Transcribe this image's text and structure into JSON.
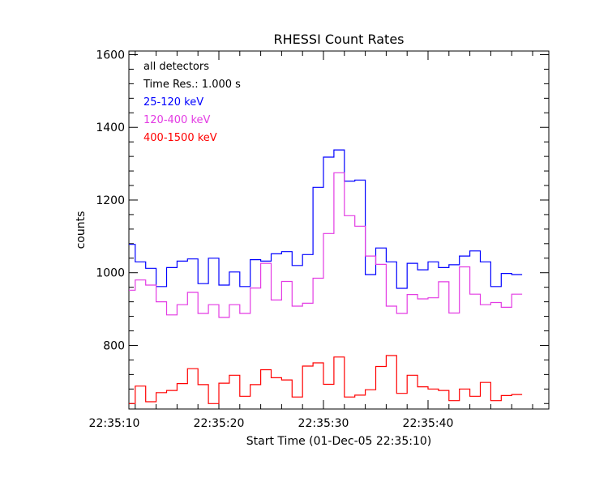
{
  "chart_data": {
    "type": "line",
    "step": true,
    "title": "RHESSI Count Rates",
    "xlabel": "Start Time (01-Dec-05 22:35:10)",
    "ylabel": "counts",
    "xlim": [
      0,
      40
    ],
    "ylim": [
      625,
      1610
    ],
    "x_ticks": [
      {
        "value": 0,
        "label": "22:35:10"
      },
      {
        "value": 10,
        "label": "22:35:20"
      },
      {
        "value": 20,
        "label": "22:35:30"
      },
      {
        "value": 30,
        "label": "22:35:40"
      }
    ],
    "y_ticks": [
      {
        "value": 800,
        "label": "800"
      },
      {
        "value": 1000,
        "label": "1000"
      },
      {
        "value": 1200,
        "label": "1200"
      },
      {
        "value": 1400,
        "label": "1400"
      },
      {
        "value": 1600,
        "label": "1600"
      }
    ],
    "annotations": [
      "all detectors",
      "Time Res.: 1.000 s"
    ],
    "series": [
      {
        "name": "25-120 keV",
        "color": "#0000ff",
        "values": [
          1078,
          1030,
          1012,
          962,
          1014,
          1032,
          1038,
          970,
          1040,
          966,
          1002,
          962,
          1036,
          1032,
          1052,
          1058,
          1020,
          1050,
          1235,
          1318,
          1338,
          1252,
          1255,
          995,
          1068,
          1030,
          957,
          1026,
          1008,
          1030,
          1014,
          1022,
          1046,
          1060,
          1030,
          962,
          998,
          995
        ]
      },
      {
        "name": "120-400 keV",
        "color": "#e33be3",
        "values": [
          952,
          980,
          966,
          920,
          884,
          912,
          946,
          888,
          912,
          877,
          912,
          888,
          958,
          1026,
          925,
          976,
          908,
          916,
          985,
          1108,
          1275,
          1157,
          1128,
          1046,
          1023,
          908,
          888,
          940,
          928,
          931,
          975,
          889,
          1016,
          941,
          912,
          918,
          905,
          941
        ]
      },
      {
        "name": "400-1500 keV",
        "color": "#ff0000",
        "values": [
          640,
          688,
          645,
          670,
          676,
          695,
          736,
          692,
          640,
          696,
          718,
          660,
          692,
          733,
          711,
          705,
          658,
          743,
          752,
          693,
          768,
          658,
          663,
          678,
          742,
          772,
          668,
          718,
          686,
          680,
          676,
          648,
          680,
          660,
          698,
          648,
          662,
          665
        ]
      }
    ]
  }
}
